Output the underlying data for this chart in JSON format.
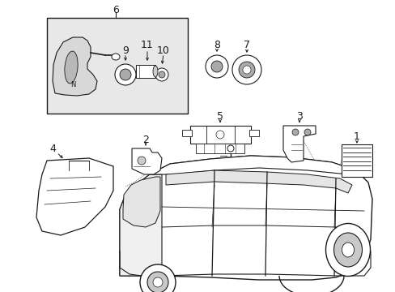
{
  "bg_color": "#ffffff",
  "image_data": "target_embedded",
  "figsize": [
    4.89,
    3.6
  ],
  "dpi": 100
}
